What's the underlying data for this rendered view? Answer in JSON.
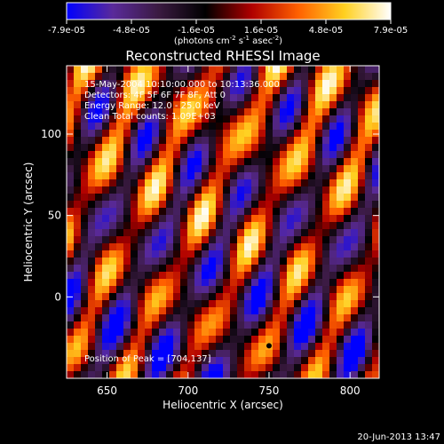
{
  "chart_data": {
    "type": "heatmap",
    "title": "Reconstructed RHESSI Image",
    "xlabel": "Heliocentric X (arcsec)",
    "ylabel": "Heliocentric Y (arcsec)",
    "xlim": [
      625,
      818
    ],
    "ylim": [
      -50,
      142
    ],
    "x_ticks": [
      650,
      700,
      750,
      800
    ],
    "x_tick_labels": [
      "650",
      "700",
      "750",
      "800"
    ],
    "y_ticks": [
      0,
      50,
      100
    ],
    "y_tick_labels": [
      "0",
      "50",
      "100"
    ],
    "colorbar": {
      "min": -7.9e-05,
      "max": 7.9e-05,
      "tick_labels": [
        "-7.9e-05",
        "-4.8e-05",
        "-1.6e-05",
        "1.6e-05",
        "4.8e-05",
        "7.9e-05"
      ],
      "units_main": "(photons cm",
      "units_exp1": "-2",
      "units_mid": " s",
      "units_exp2": "-1",
      "units_mid2": " asec",
      "units_exp3": "-2",
      "units_end": ")",
      "colors": [
        "#0000ff",
        "#5a2a9a",
        "#3a1a40",
        "#000000",
        "#b00000",
        "#ff6000",
        "#ffd020",
        "#ffffff"
      ]
    },
    "annotations": [
      "15-May-2004 10:10:00.000 to 10:13:36.000",
      "Detectors: 4F 5F 6F 7F 8F, Att 0",
      "Energy Range: 12.0 - 25.0 keV",
      "Clean     Total counts: 1.09E+03"
    ],
    "peak_label": "Position of Peak = [704,137]",
    "peak_marker": {
      "x": 750,
      "y": -30
    }
  },
  "footer_date": "20-Jun-2013 13:47"
}
